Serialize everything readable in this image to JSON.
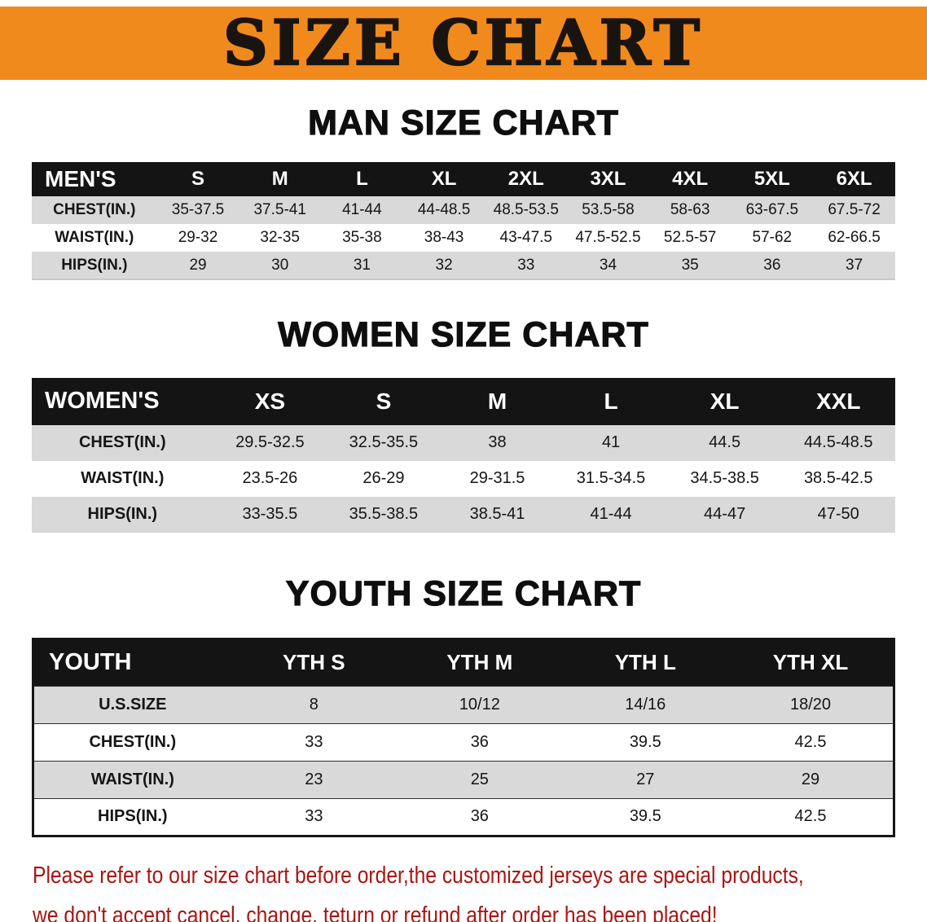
{
  "banner": {
    "title": "SIZE CHART"
  },
  "colors": {
    "banner_bg": "#F18A1D",
    "banner_text": "#1A1410",
    "table_header_bg": "#141414",
    "table_header_text": "#FFFFFF",
    "stripe_gray": "#D9D9D9",
    "disclaimer_red": "#A91512"
  },
  "sections": [
    {
      "id": "men",
      "heading": "MAN SIZE CHART",
      "table": {
        "header": [
          "MEN'S",
          "S",
          "M",
          "L",
          "XL",
          "2XL",
          "3XL",
          "4XL",
          "5XL",
          "6XL"
        ],
        "rows": [
          [
            "CHEST(IN.)",
            "35-37.5",
            "37.5-41",
            "41-44",
            "44-48.5",
            "48.5-53.5",
            "53.5-58",
            "58-63",
            "63-67.5",
            "67.5-72"
          ],
          [
            "WAIST(IN.)",
            "29-32",
            "32-35",
            "35-38",
            "38-43",
            "43-47.5",
            "47.5-52.5",
            "52.5-57",
            "57-62",
            "62-66.5"
          ],
          [
            "HIPS(IN.)",
            "29",
            "30",
            "31",
            "32",
            "33",
            "34",
            "35",
            "36",
            "37"
          ]
        ]
      }
    },
    {
      "id": "women",
      "heading": "WOMEN SIZE CHART",
      "table": {
        "header": [
          "WOMEN'S",
          "XS",
          "S",
          "M",
          "L",
          "XL",
          "XXL"
        ],
        "rows": [
          [
            "CHEST(IN.)",
            "29.5-32.5",
            "32.5-35.5",
            "38",
            "41",
            "44.5",
            "44.5-48.5"
          ],
          [
            "WAIST(IN.)",
            "23.5-26",
            "26-29",
            "29-31.5",
            "31.5-34.5",
            "34.5-38.5",
            "38.5-42.5"
          ],
          [
            "HIPS(IN.)",
            "33-35.5",
            "35.5-38.5",
            "38.5-41",
            "41-44",
            "44-47",
            "47-50"
          ]
        ]
      }
    },
    {
      "id": "youth",
      "heading": "YOUTH SIZE CHART",
      "table": {
        "header": [
          "YOUTH",
          "YTH S",
          "YTH M",
          "YTH L",
          "YTH XL"
        ],
        "rows": [
          [
            "U.S.SIZE",
            "8",
            "10/12",
            "14/16",
            "18/20"
          ],
          [
            "CHEST(IN.)",
            "33",
            "36",
            "39.5",
            "42.5"
          ],
          [
            "WAIST(IN.)",
            "23",
            "25",
            "27",
            "29"
          ],
          [
            "HIPS(IN.)",
            "33",
            "36",
            "39.5",
            "42.5"
          ]
        ]
      }
    }
  ],
  "disclaimer": {
    "line1": "Please refer to our size chart before order,the customized jerseys are special products,",
    "line2": "we don't accept cancel, change, teturn or refund after order has been placed!"
  }
}
